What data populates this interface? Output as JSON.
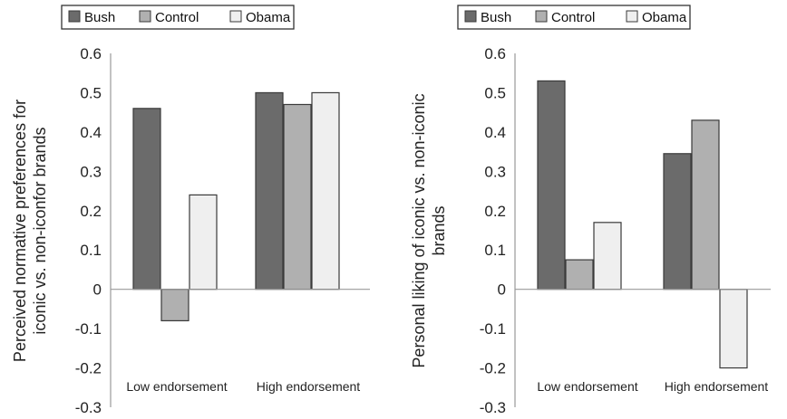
{
  "chart_data": [
    {
      "type": "bar",
      "categories": [
        "Low endorsement",
        "High endorsement"
      ],
      "series": [
        {
          "name": "Bush",
          "values": [
            0.46,
            0.5
          ]
        },
        {
          "name": "Control",
          "values": [
            -0.08,
            0.47
          ]
        },
        {
          "name": "Obama",
          "values": [
            0.24,
            0.5
          ]
        }
      ],
      "ylabel_lines": [
        "Perceived normative preferences for",
        "iconic vs. non-iconfor brands"
      ],
      "ylim": [
        -0.3,
        0.6
      ],
      "yticks": [
        "0.6",
        "0.5",
        "0.4",
        "0.3",
        "0.2",
        "0.1",
        "0",
        "-0.1",
        "-0.2",
        "-0.3"
      ],
      "legend": "top",
      "grid": false
    },
    {
      "type": "bar",
      "categories": [
        "Low endorsement",
        "High endorsement"
      ],
      "series": [
        {
          "name": "Bush",
          "values": [
            0.53,
            0.345
          ]
        },
        {
          "name": "Control",
          "values": [
            0.075,
            0.43
          ]
        },
        {
          "name": "Obama",
          "values": [
            0.17,
            -0.2
          ]
        }
      ],
      "ylabel_lines": [
        "Personal liking of iconic vs. non-iconic",
        "brands"
      ],
      "ylim": [
        -0.3,
        0.6
      ],
      "yticks": [
        "0.6",
        "0.5",
        "0.4",
        "0.3",
        "0.2",
        "0.1",
        "0",
        "-0.1",
        "-0.2",
        "-0.3"
      ],
      "legend": "top",
      "grid": false
    }
  ],
  "colors": {
    "Bush": "#6b6b6b",
    "Control": "#b0b0b0",
    "Obama": "#efefef",
    "stroke": "#3a3a3a",
    "axis": "#9a9a9a"
  }
}
